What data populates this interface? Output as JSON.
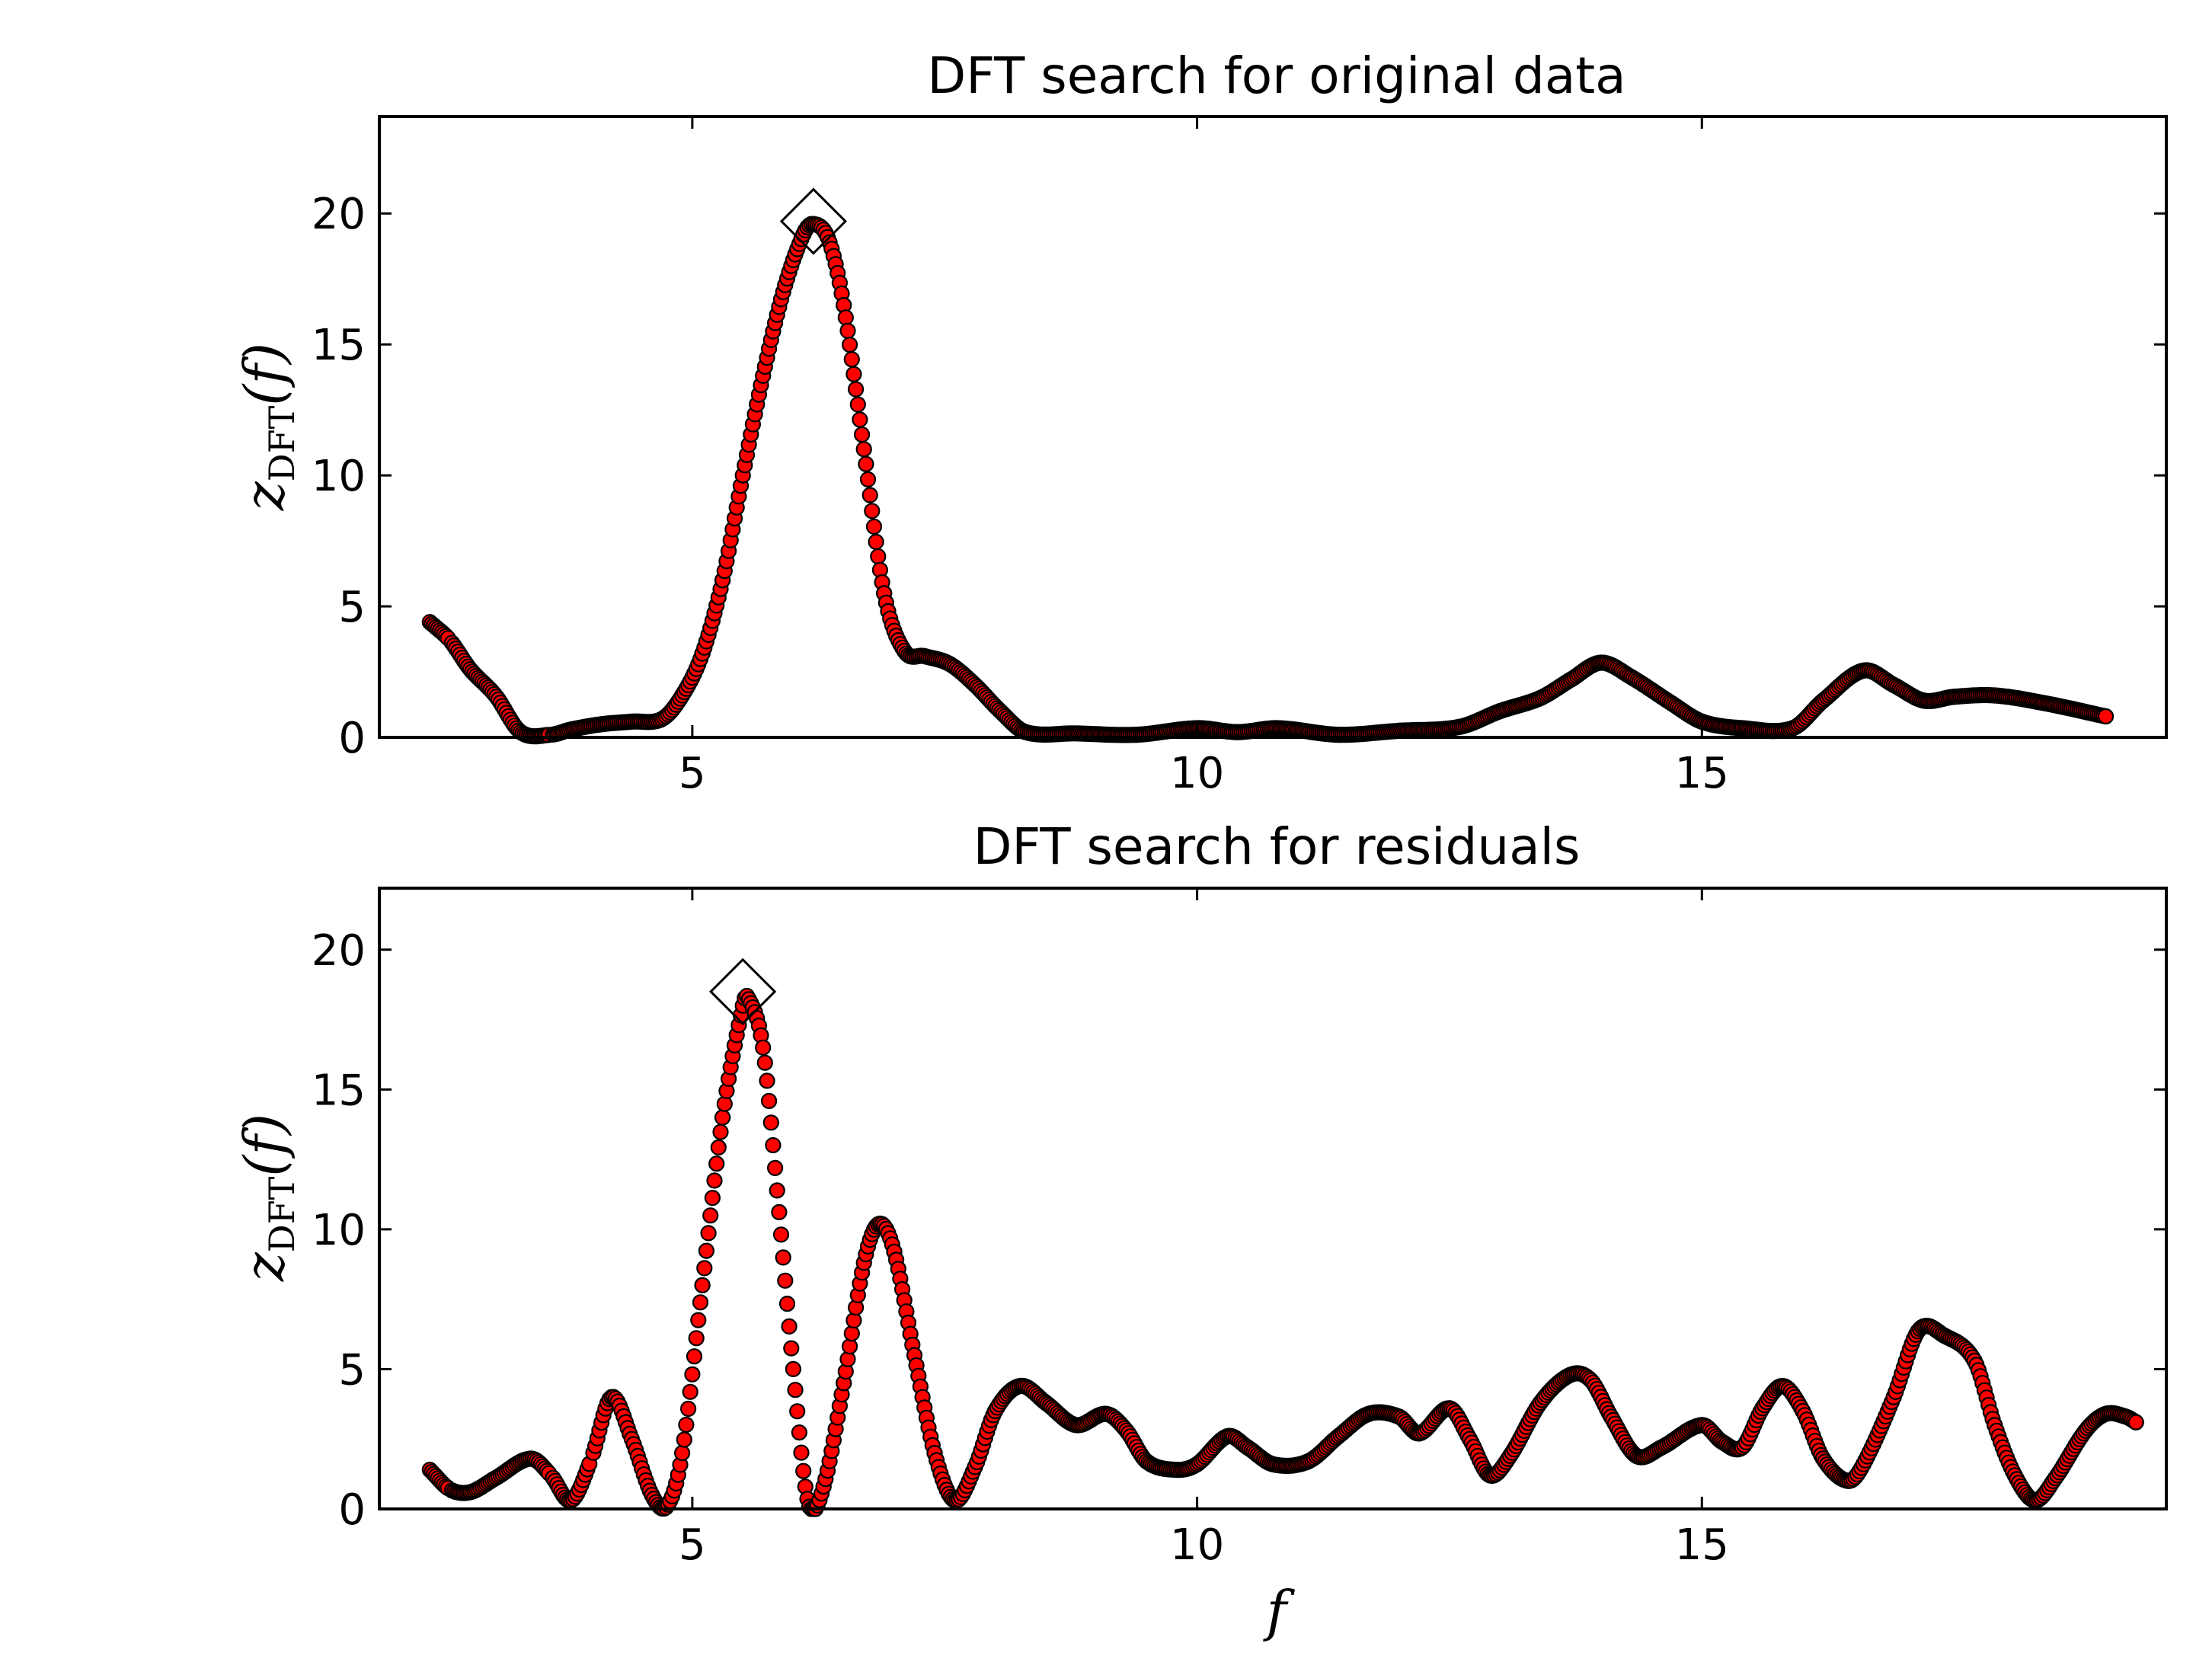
{
  "chart_data": [
    {
      "type": "scatter",
      "title": "DFT search for original data",
      "xlabel": "",
      "ylabel": "z_DFT(f)",
      "ylabel_parts": {
        "main": "z",
        "sub": "DFT",
        "arg": "(f)"
      },
      "xlim": [
        1.9,
        19.6
      ],
      "ylim": [
        0,
        23.7
      ],
      "xticks": [
        5,
        10,
        15
      ],
      "yticks": [
        0,
        5,
        10,
        15,
        20
      ],
      "grid": false,
      "legend": "none",
      "marker_color": "#ff0000",
      "marker_edge_color": "#000000",
      "step": 0.02,
      "series": [
        {
          "knots": [
            [
              2.4,
              4.4
            ],
            [
              2.6,
              3.7
            ],
            [
              2.8,
              2.6
            ],
            [
              3.05,
              1.6
            ],
            [
              3.3,
              0.2
            ],
            [
              3.6,
              0.1
            ],
            [
              3.8,
              0.3
            ],
            [
              4.1,
              0.5
            ],
            [
              4.4,
              0.6
            ],
            [
              4.7,
              0.7
            ],
            [
              4.9,
              1.6
            ],
            [
              5.1,
              3.2
            ],
            [
              5.3,
              6.0
            ],
            [
              5.5,
              10.0
            ],
            [
              5.7,
              13.8
            ],
            [
              5.9,
              17.0
            ],
            [
              6.1,
              19.2
            ],
            [
              6.2,
              19.6
            ],
            [
              6.35,
              19.0
            ],
            [
              6.5,
              16.5
            ],
            [
              6.7,
              11.0
            ],
            [
              6.9,
              5.5
            ],
            [
              7.1,
              3.3
            ],
            [
              7.3,
              3.1
            ],
            [
              7.55,
              2.8
            ],
            [
              7.8,
              2.0
            ],
            [
              8.05,
              1.0
            ],
            [
              8.3,
              0.2
            ],
            [
              8.8,
              0.15
            ],
            [
              9.4,
              0.1
            ],
            [
              10.0,
              0.35
            ],
            [
              10.4,
              0.2
            ],
            [
              10.8,
              0.35
            ],
            [
              11.4,
              0.1
            ],
            [
              12.0,
              0.25
            ],
            [
              12.6,
              0.4
            ],
            [
              13.0,
              1.0
            ],
            [
              13.4,
              1.5
            ],
            [
              13.7,
              2.2
            ],
            [
              14.0,
              2.85
            ],
            [
              14.3,
              2.3
            ],
            [
              14.7,
              1.3
            ],
            [
              15.0,
              0.6
            ],
            [
              15.4,
              0.35
            ],
            [
              15.9,
              0.35
            ],
            [
              16.2,
              1.4
            ],
            [
              16.6,
              2.55
            ],
            [
              16.9,
              2.0
            ],
            [
              17.2,
              1.4
            ],
            [
              17.5,
              1.55
            ],
            [
              17.9,
              1.6
            ],
            [
              18.4,
              1.3
            ],
            [
              19.0,
              0.8
            ]
          ]
        }
      ],
      "peak": {
        "x": 6.2,
        "y": 19.7
      }
    },
    {
      "type": "scatter",
      "title": "DFT search for residuals",
      "xlabel": "f",
      "ylabel": "z_DFT(f)",
      "ylabel_parts": {
        "main": "z",
        "sub": "DFT",
        "arg": "(f)"
      },
      "xlim": [
        1.9,
        19.6
      ],
      "ylim": [
        0,
        22.2
      ],
      "xticks": [
        5,
        10,
        15
      ],
      "yticks": [
        0,
        5,
        10,
        15,
        20
      ],
      "grid": false,
      "legend": "none",
      "marker_color": "#ff0000",
      "marker_edge_color": "#000000",
      "step": 0.02,
      "series": [
        {
          "knots": [
            [
              2.4,
              1.4
            ],
            [
              2.6,
              0.7
            ],
            [
              2.8,
              0.6
            ],
            [
              3.05,
              1.1
            ],
            [
              3.4,
              1.8
            ],
            [
              3.6,
              1.2
            ],
            [
              3.8,
              0.3
            ],
            [
              4.0,
              1.8
            ],
            [
              4.2,
              4.0
            ],
            [
              4.4,
              2.5
            ],
            [
              4.6,
              0.5
            ],
            [
              4.75,
              0.1
            ],
            [
              4.9,
              2.0
            ],
            [
              5.1,
              8.0
            ],
            [
              5.3,
              14.0
            ],
            [
              5.5,
              18.0
            ],
            [
              5.55,
              18.3
            ],
            [
              5.7,
              16.5
            ],
            [
              5.85,
              11.0
            ],
            [
              6.0,
              5.0
            ],
            [
              6.15,
              0.2
            ],
            [
              6.3,
              0.8
            ],
            [
              6.5,
              4.5
            ],
            [
              6.7,
              8.8
            ],
            [
              6.85,
              10.2
            ],
            [
              7.0,
              9.2
            ],
            [
              7.2,
              5.5
            ],
            [
              7.4,
              2.0
            ],
            [
              7.6,
              0.3
            ],
            [
              7.8,
              1.5
            ],
            [
              8.0,
              3.5
            ],
            [
              8.25,
              4.4
            ],
            [
              8.5,
              3.8
            ],
            [
              8.8,
              3.0
            ],
            [
              9.1,
              3.4
            ],
            [
              9.3,
              2.8
            ],
            [
              9.5,
              1.7
            ],
            [
              9.8,
              1.4
            ],
            [
              10.0,
              1.6
            ],
            [
              10.3,
              2.6
            ],
            [
              10.5,
              2.2
            ],
            [
              10.75,
              1.6
            ],
            [
              11.1,
              1.7
            ],
            [
              11.4,
              2.6
            ],
            [
              11.7,
              3.4
            ],
            [
              12.0,
              3.3
            ],
            [
              12.2,
              2.7
            ],
            [
              12.5,
              3.6
            ],
            [
              12.7,
              2.5
            ],
            [
              12.9,
              1.2
            ],
            [
              13.1,
              1.9
            ],
            [
              13.4,
              3.8
            ],
            [
              13.7,
              4.8
            ],
            [
              13.9,
              4.6
            ],
            [
              14.1,
              3.3
            ],
            [
              14.35,
              1.9
            ],
            [
              14.6,
              2.2
            ],
            [
              15.0,
              3.0
            ],
            [
              15.2,
              2.4
            ],
            [
              15.4,
              2.2
            ],
            [
              15.6,
              3.6
            ],
            [
              15.8,
              4.4
            ],
            [
              16.0,
              3.5
            ],
            [
              16.2,
              1.8
            ],
            [
              16.45,
              1.0
            ],
            [
              16.6,
              1.6
            ],
            [
              16.9,
              4.0
            ],
            [
              17.15,
              6.4
            ],
            [
              17.4,
              6.2
            ],
            [
              17.7,
              5.3
            ],
            [
              17.9,
              3.0
            ],
            [
              18.1,
              1.2
            ],
            [
              18.3,
              0.3
            ],
            [
              18.5,
              1.1
            ],
            [
              18.8,
              2.8
            ],
            [
              19.0,
              3.4
            ],
            [
              19.2,
              3.3
            ],
            [
              19.3,
              3.1
            ]
          ]
        }
      ],
      "peak": {
        "x": 5.5,
        "y": 18.5
      }
    }
  ]
}
